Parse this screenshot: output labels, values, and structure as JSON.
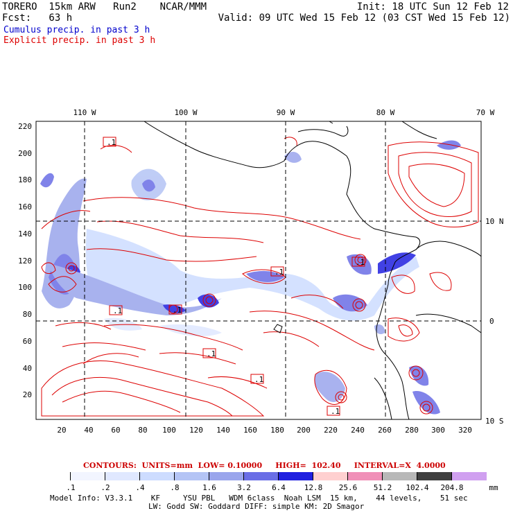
{
  "header": {
    "model_line": "TORERO  15km ARW   Run2    NCAR/MMM",
    "init": "Init: 18 UTC Sun 12 Feb 12",
    "fcst": "Fcst:   63 h",
    "valid": "Valid: 09 UTC Wed 15 Feb 12 (03 CST Wed 15 Feb 12)"
  },
  "legend": {
    "cumulus": "Cumulus precip. in past 3 h",
    "explicit": "Explicit precip. in past 3 h",
    "cumulus_color": "#0000cc",
    "explicit_color": "#dd0000"
  },
  "map": {
    "lon_labels": [
      "110 W",
      "100 W",
      "90 W",
      "80 W",
      "70 W"
    ],
    "lat_labels": [
      "10 N",
      "0",
      "10 S"
    ],
    "y_ticks": [
      "220",
      "200",
      "180",
      "160",
      "140",
      "120",
      "100",
      "80",
      "60",
      "40",
      "20"
    ],
    "x_ticks": [
      "20",
      "40",
      "60",
      "80",
      "100",
      "120",
      "140",
      "160",
      "180",
      "200",
      "220",
      "240",
      "260",
      "280",
      "300",
      "320"
    ],
    "cell_labels": [
      ".1",
      ".1",
      ".1",
      ".1",
      ".1",
      ".1",
      ".1",
      ".1"
    ]
  },
  "contour_info": "CONTOURS:  UNITS=mm  LOW= 0.10000     HIGH=  102.40     INTERVAL=X  4.0000",
  "colorbar": {
    "unit": "mm",
    "labels": [
      ".1",
      ".2",
      ".4",
      ".8",
      "1.6",
      "3.2",
      "6.4",
      "12.8",
      "25.6",
      "51.2",
      "102.4",
      "204.8"
    ],
    "colors": [
      "#ffffff",
      "#f2f5ff",
      "#e0e8ff",
      "#cddcff",
      "#b4c4f5",
      "#9aa5ec",
      "#6a6ee6",
      "#2020e0",
      "#ffd0d0",
      "#f090b8",
      "#b8b8b8",
      "#404040",
      "#d0a0f0"
    ]
  },
  "footer": {
    "line1": "Model Info: V3.3.1    KF     YSU PBL   WDM 6class  Noah LSM  15 km,    44 levels,    51 sec",
    "line2": "LW: Godd SW: Goddard DIFF: simple KM: 2D Smagor"
  }
}
